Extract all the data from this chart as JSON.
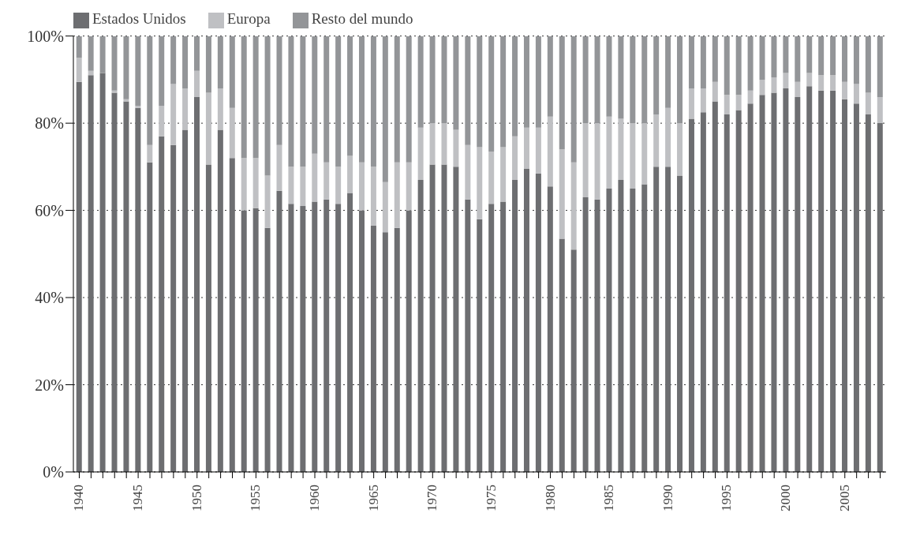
{
  "chart_data": {
    "type": "bar",
    "stacked": true,
    "categories": [
      "1940",
      null,
      null,
      null,
      null,
      "1945",
      null,
      null,
      null,
      null,
      "1950",
      null,
      null,
      null,
      null,
      "1955",
      null,
      null,
      null,
      null,
      "1960",
      null,
      null,
      null,
      null,
      "1965",
      null,
      null,
      null,
      null,
      "1970",
      null,
      null,
      null,
      null,
      "1975",
      null,
      null,
      null,
      null,
      "1980",
      null,
      null,
      null,
      null,
      "1985",
      null,
      null,
      null,
      null,
      "1990",
      null,
      null,
      null,
      null,
      "1995",
      null,
      null,
      null,
      null,
      "2000",
      null,
      null,
      null,
      null,
      "2005",
      null,
      null,
      null
    ],
    "series": [
      {
        "name": "Estados Unidos",
        "color": "#6d6e71",
        "values": [
          89.5,
          91,
          91.5,
          87,
          85,
          83.5,
          71,
          77,
          75,
          78.5,
          86,
          70.5,
          78.5,
          72,
          60,
          60.5,
          56,
          64.5,
          61.5,
          61,
          62,
          62.5,
          61.5,
          64,
          60,
          56.5,
          55,
          56,
          60,
          67,
          70.5,
          70.5,
          70,
          62.5,
          58,
          61.5,
          62,
          67,
          69.5,
          68.5,
          65.5,
          53.5,
          51,
          63,
          62.5,
          65,
          67,
          65,
          66,
          70,
          70,
          68,
          81,
          82.5,
          85,
          82,
          83,
          84.5,
          86.5,
          87,
          88,
          86,
          88.5,
          87.5,
          87.5,
          85.5,
          84.5,
          82,
          80
        ]
      },
      {
        "name": "Europa",
        "color": "#bfc0c3",
        "values": [
          5.5,
          1,
          0,
          0.5,
          0.5,
          0.5,
          4,
          7,
          14,
          9.5,
          6,
          16.5,
          9.5,
          11.5,
          12,
          11.5,
          12,
          10.5,
          8.5,
          9,
          11,
          8.5,
          8.5,
          8.5,
          11,
          13.5,
          11.5,
          15,
          11,
          12,
          9.5,
          9.5,
          8.5,
          12.5,
          16.5,
          12,
          12.5,
          10,
          9.5,
          10.5,
          16,
          20.5,
          20,
          17,
          17.5,
          16.5,
          14,
          15,
          14,
          12,
          13.5,
          12,
          7,
          5.5,
          4.5,
          4.5,
          3.5,
          3,
          3.5,
          3.5,
          3.5,
          3.5,
          3,
          3.5,
          3.5,
          4,
          4.5,
          5,
          6
        ]
      },
      {
        "name": "Resto del mundo",
        "color": "#939598",
        "values": [
          5,
          8,
          8.5,
          12.5,
          14.5,
          16,
          25,
          16,
          11,
          12,
          8,
          13,
          12,
          16.5,
          28,
          28,
          32,
          25,
          30,
          30,
          27,
          29,
          30,
          27.5,
          29,
          30,
          33.5,
          29,
          29,
          21,
          20,
          20,
          21.5,
          25,
          25.5,
          26.5,
          25.5,
          23,
          21,
          21,
          18.5,
          26,
          29,
          20,
          20,
          18.5,
          19,
          20,
          20,
          18,
          16.5,
          20,
          12,
          12,
          10.5,
          13.5,
          13.5,
          12.5,
          10,
          9.5,
          8.5,
          10.5,
          8.5,
          9,
          9,
          10.5,
          11,
          13,
          14
        ]
      }
    ],
    "ylim": [
      0,
      100
    ],
    "yticks": [
      {
        "value": 0,
        "label": "0%"
      },
      {
        "value": 20,
        "label": "20%"
      },
      {
        "value": 40,
        "label": "40%"
      },
      {
        "value": 60,
        "label": "60%"
      },
      {
        "value": 80,
        "label": "80%"
      },
      {
        "value": 100,
        "label": "100%"
      }
    ],
    "grid": "y",
    "legend": "top left"
  }
}
